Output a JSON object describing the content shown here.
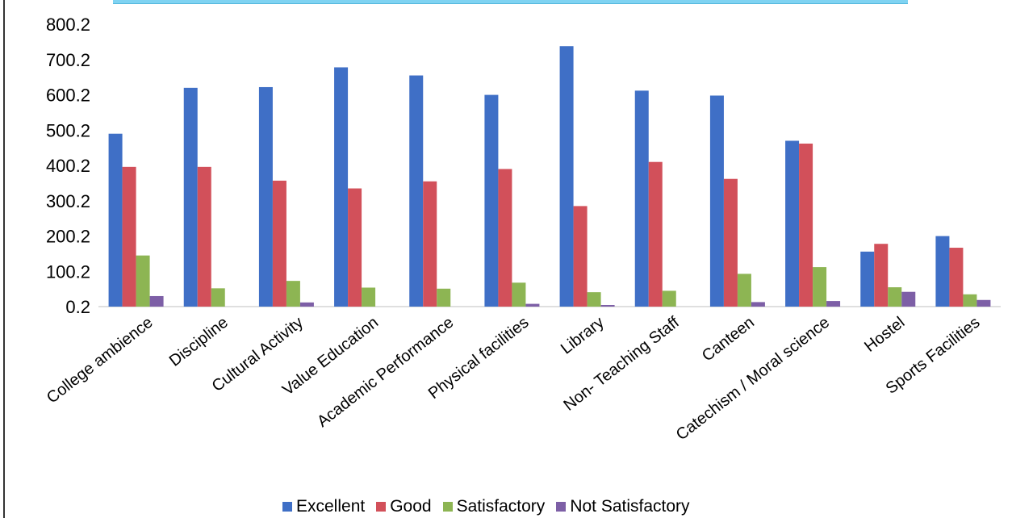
{
  "chart_data": {
    "type": "bar",
    "title": "",
    "xlabel": "",
    "ylabel": "",
    "ylim": [
      0.2,
      800.2
    ],
    "yticks": [
      "800.2",
      "700.2",
      "600.2",
      "500.2",
      "400.2",
      "300.2",
      "200.2",
      "100.2",
      "0.2"
    ],
    "grid": false,
    "legend_position": "bottom",
    "categories": [
      "College ambience",
      "Discipline",
      "Cultural Activity",
      "Value Education",
      "Academic Performance",
      "Physical facilities",
      "Library",
      "Non- Teaching Staff",
      "Canteen",
      "Catechism / Moral science",
      "Hostel",
      "Sports Facilities"
    ],
    "series": [
      {
        "name": "Excellent",
        "color": "#3f6fc6",
        "values": [
          490,
          620,
          622,
          678,
          655,
          600,
          738,
          612,
          598,
          470,
          156,
          200
        ]
      },
      {
        "name": "Good",
        "color": "#d2505a",
        "values": [
          396,
          396,
          357,
          335,
          355,
          390,
          285,
          410,
          362,
          462,
          178,
          167
        ]
      },
      {
        "name": "Satisfactory",
        "color": "#8db553",
        "values": [
          145,
          52,
          73,
          54,
          51,
          68,
          41,
          45,
          93,
          112,
          55,
          35
        ]
      },
      {
        "name": "Not Satisfactory",
        "color": "#7d5fa6",
        "values": [
          30,
          0,
          12,
          0,
          0,
          8,
          4,
          0,
          13,
          16,
          42,
          19
        ]
      }
    ]
  }
}
